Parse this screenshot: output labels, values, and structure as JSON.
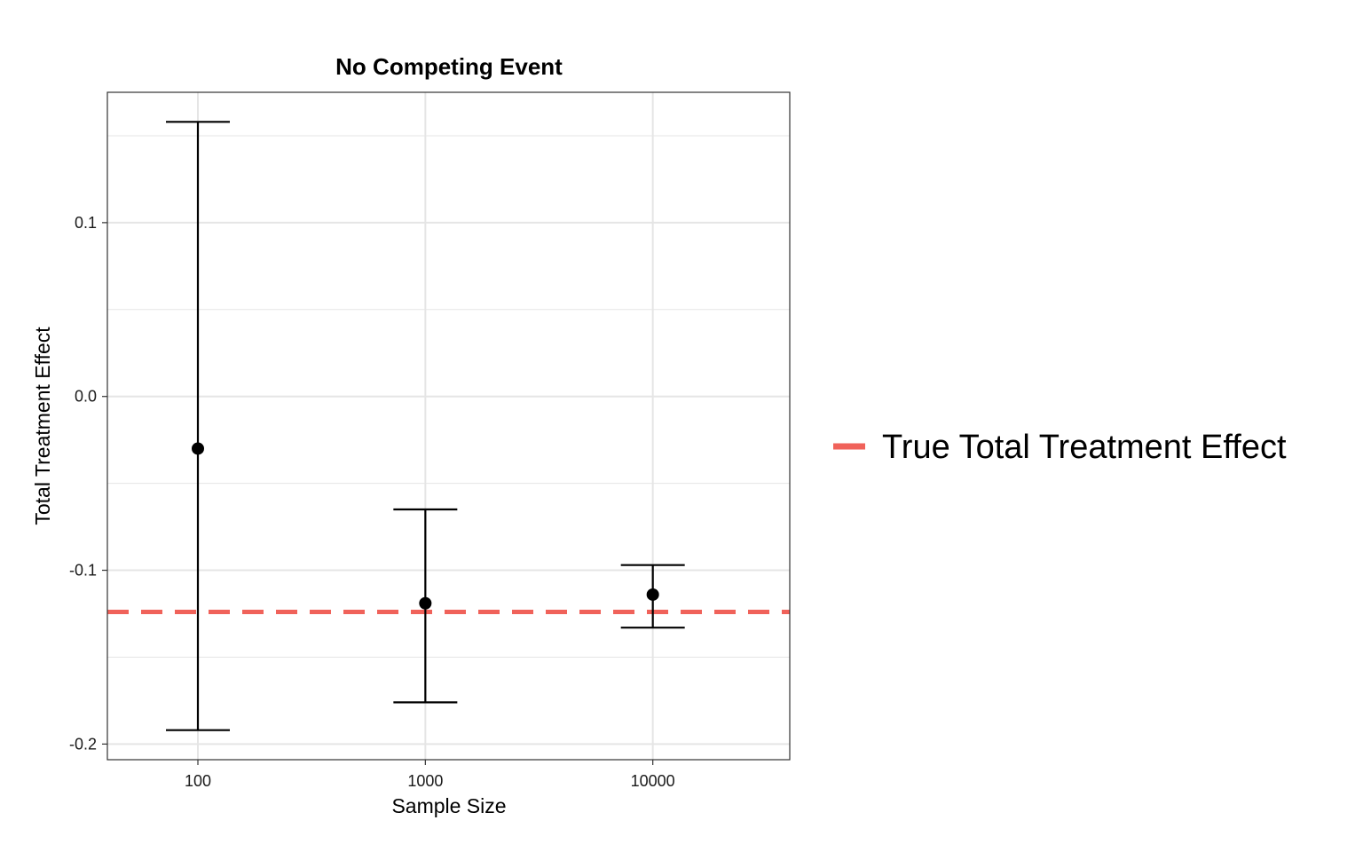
{
  "chart_data": {
    "type": "errorbar",
    "title": "No Competing Event",
    "xlabel": "Sample Size",
    "ylabel": "Total Treatment Effect",
    "x_scale": "log10",
    "categories": [
      "100",
      "1000",
      "10000"
    ],
    "x": [
      100,
      1000,
      10000
    ],
    "estimate": [
      -0.03,
      -0.119,
      -0.114
    ],
    "lower": [
      -0.192,
      -0.176,
      -0.133
    ],
    "upper": [
      0.158,
      -0.065,
      -0.097
    ],
    "y_ticks": [
      0.1,
      0.0,
      -0.1,
      -0.2
    ],
    "y_tick_labels": [
      "0.1",
      "0.0",
      "-0.1",
      "-0.2"
    ],
    "ylim": [
      -0.209,
      0.175
    ],
    "xlim": [
      40,
      40000
    ],
    "grid": true,
    "reference_line": {
      "y": -0.124,
      "color": "#f0625a",
      "style": "dashed",
      "label": "True Total Treatment Effect"
    },
    "legend": {
      "placement": "right",
      "entries": [
        "True Total Treatment Effect"
      ]
    },
    "colors": {
      "points": "#000000",
      "reference": "#f0625a",
      "grid": "#e5e5e5",
      "panel_border": "#333333"
    }
  }
}
